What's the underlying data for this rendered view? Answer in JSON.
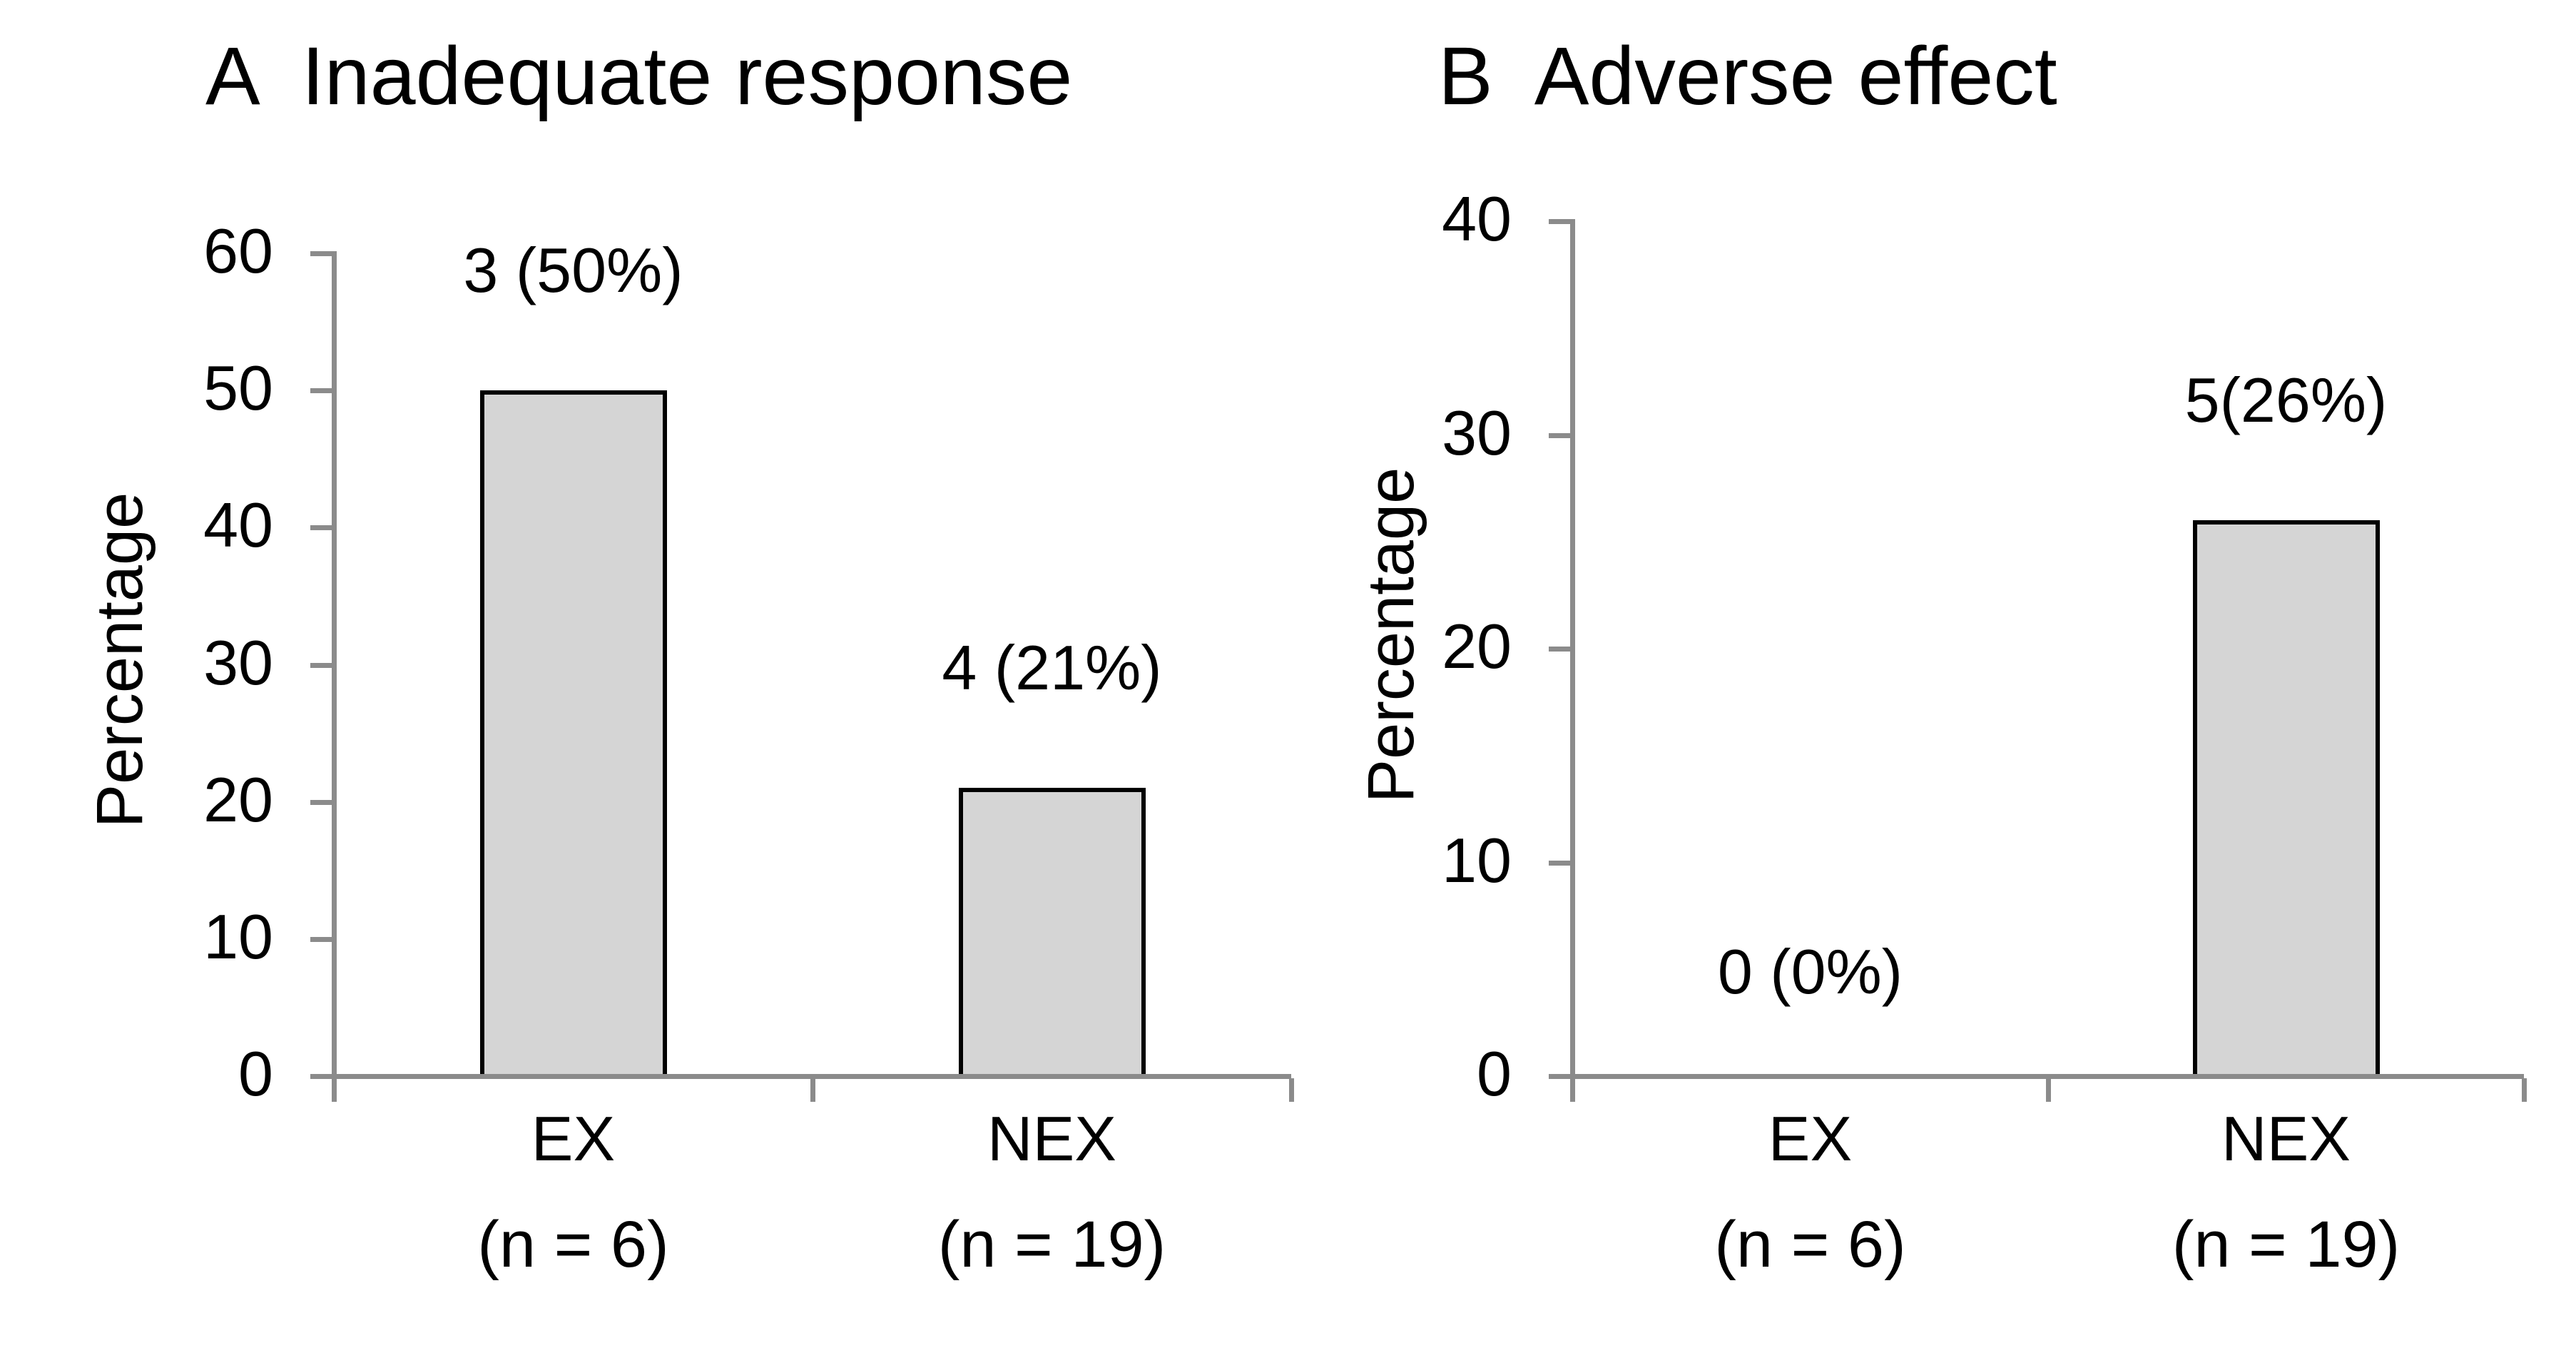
{
  "figure": {
    "background": "#ffffff"
  },
  "colors": {
    "axis": "#8b8b8b",
    "text": "#000000",
    "bar_fill": "#d5d5d5",
    "bar_border": "#000000"
  },
  "chart_data": [
    {
      "type": "bar",
      "panel_letter": "A",
      "title": "Inadequate response",
      "ylabel": "Percentage",
      "ylim": [
        0,
        60
      ],
      "yticks": [
        0,
        10,
        20,
        30,
        40,
        50,
        60
      ],
      "categories": [
        "EX",
        "NEX"
      ],
      "category_sublabels": [
        "(n = 6)",
        "(n = 19)"
      ],
      "values": [
        50,
        21
      ],
      "bar_labels": [
        "3 (50%)",
        "4 (21%)"
      ],
      "grid": false,
      "legend": "none"
    },
    {
      "type": "bar",
      "panel_letter": "B",
      "title": "Adverse effect",
      "ylabel": "Percentage",
      "ylim": [
        0,
        40
      ],
      "yticks": [
        0,
        10,
        20,
        30,
        40
      ],
      "categories": [
        "EX",
        "NEX"
      ],
      "category_sublabels": [
        "(n = 6)",
        "(n = 19)"
      ],
      "values": [
        0,
        26
      ],
      "bar_labels": [
        "0 (0%)",
        "5(26%)"
      ],
      "grid": false,
      "legend": "none"
    }
  ]
}
